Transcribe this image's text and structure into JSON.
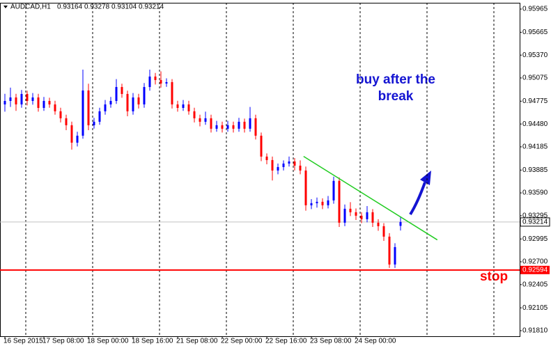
{
  "chart_data": {
    "type": "candlestick",
    "title": "AUDCAD,H1",
    "up_color": "#0000ff",
    "down_color": "#ff0000",
    "open": [
      0.94733,
      0.94778,
      0.94823,
      0.94733,
      0.94868,
      0.94778,
      0.94823,
      0.94688,
      0.94778,
      0.94733,
      0.94644,
      0.94554,
      0.94464,
      0.94239,
      0.94329,
      0.94913,
      0.94464,
      0.94509,
      0.94644,
      0.94733,
      0.94778,
      0.94958,
      0.94868,
      0.94644,
      0.94823,
      0.94733,
      0.94958,
      0.95093,
      0.95048,
      0.95003,
      0.95021,
      0.94733,
      0.94688,
      0.94733,
      0.94644,
      0.94554,
      0.94509,
      0.94554,
      0.94419,
      0.94464,
      0.94419,
      0.94464,
      0.94419,
      0.94509,
      0.94419,
      0.94554,
      0.94329,
      0.94059,
      0.94014,
      0.93879,
      0.93924,
      0.93969,
      0.93996,
      0.93942,
      0.93879,
      0.9343,
      0.93457,
      0.93475,
      0.9343,
      0.93493,
      0.93745,
      0.93205,
      0.93385,
      0.9334,
      0.93295,
      0.9325,
      0.9334,
      0.93205,
      0.9316,
      0.93025,
      0.92665,
      0.93164
    ],
    "high": [
      0.9487,
      0.9495,
      0.9487,
      0.9492,
      0.9491,
      0.9488,
      0.9487,
      0.9483,
      0.9482,
      0.9478,
      0.9469,
      0.946,
      0.9451,
      0.9438,
      0.95183,
      0.95,
      0.9456,
      0.9469,
      0.9479,
      0.9483,
      0.9506,
      0.95,
      0.9491,
      0.9488,
      0.9487,
      0.9501,
      0.95183,
      0.9514,
      0.9516,
      0.9507,
      0.9506,
      0.9478,
      0.9479,
      0.9478,
      0.9469,
      0.946,
      0.9464,
      0.946,
      0.9452,
      0.9451,
      0.9452,
      0.9451,
      0.9456,
      0.9455,
      0.947,
      0.946,
      0.9437,
      0.941,
      0.9406,
      0.9397,
      0.9401,
      0.9406,
      0.9404,
      0.9401,
      0.9393,
      0.9351,
      0.9353,
      0.9352,
      0.9355,
      0.938,
      0.9379,
      0.9344,
      0.9347,
      0.9339,
      0.9334,
      0.9342,
      0.9338,
      0.9325,
      0.932,
      0.9307,
      0.9294,
      0.93278
    ],
    "low": [
      0.9464,
      0.947,
      0.9465,
      0.9469,
      0.9472,
      0.9473,
      0.9464,
      0.9465,
      0.9469,
      0.946,
      0.945,
      0.944,
      0.9415,
      0.9419,
      0.9429,
      0.944,
      0.9442,
      0.9447,
      0.946,
      0.9469,
      0.9474,
      0.9482,
      0.9458,
      0.946,
      0.9468,
      0.9469,
      0.9491,
      0.9499,
      0.9495,
      0.9496,
      0.9468,
      0.9464,
      0.9465,
      0.946,
      0.945,
      0.9445,
      0.9447,
      0.9437,
      0.9438,
      0.9437,
      0.9438,
      0.9437,
      0.9438,
      0.9437,
      0.9438,
      0.9428,
      0.94,
      0.9396,
      0.9375,
      0.9383,
      0.9388,
      0.9393,
      0.9388,
      0.9383,
      0.9336,
      0.9338,
      0.934,
      0.9338,
      0.9339,
      0.9345,
      0.9315,
      0.9316,
      0.9329,
      0.9324,
      0.932,
      0.9321,
      0.9315,
      0.931,
      0.9297,
      0.9262,
      0.9262,
      0.93104
    ],
    "close": [
      0.94778,
      0.94823,
      0.94733,
      0.94868,
      0.94778,
      0.94823,
      0.94688,
      0.94778,
      0.94733,
      0.94644,
      0.94554,
      0.94464,
      0.94239,
      0.94329,
      0.94913,
      0.94464,
      0.94509,
      0.94644,
      0.94733,
      0.94778,
      0.94958,
      0.94868,
      0.94644,
      0.94823,
      0.94733,
      0.94958,
      0.95093,
      0.95048,
      0.95003,
      0.95021,
      0.94733,
      0.94688,
      0.94733,
      0.94644,
      0.94554,
      0.94509,
      0.94554,
      0.94419,
      0.94464,
      0.94419,
      0.94464,
      0.94419,
      0.94509,
      0.94419,
      0.94554,
      0.94329,
      0.94059,
      0.94014,
      0.93879,
      0.93924,
      0.93969,
      0.93996,
      0.93942,
      0.93879,
      0.9343,
      0.93457,
      0.93475,
      0.9343,
      0.93493,
      0.93745,
      0.93205,
      0.93385,
      0.9334,
      0.93295,
      0.9325,
      0.9334,
      0.93205,
      0.9316,
      0.93025,
      0.92665,
      0.9289,
      0.93214
    ],
    "xlim": [
      -0.875,
      92.375
    ],
    "ylim": [
      0.91738,
      0.96046
    ],
    "yticks": [
      0.95965,
      0.95665,
      {
        "value": 0.9537,
        "label": "0.95370"
      },
      0.95075,
      0.94775,
      {
        "value": 0.9448,
        "label": "0.94480"
      },
      0.94185,
      0.93885,
      {
        "value": 0.9359,
        "label": "0.93590"
      },
      0.93295,
      0.92995,
      {
        "value": 0.927,
        "label": "0.92700"
      },
      0.92405,
      0.92105,
      {
        "value": 0.9181,
        "label": "0.91810"
      }
    ],
    "xticks": [
      {
        "value": 0,
        "label": "16 Sep 2015"
      },
      {
        "value": 7,
        "label": "17 Sep 08:00"
      },
      {
        "value": 15,
        "label": "18 Sep 00:00"
      },
      {
        "value": 23,
        "label": "18 Sep 16:00"
      },
      {
        "value": 31,
        "label": "21 Sep 08:00"
      },
      {
        "value": 39,
        "label": "22 Sep 00:00"
      },
      {
        "value": 47,
        "label": "22 Sep 16:00"
      },
      {
        "value": 55,
        "label": "23 Sep 08:00"
      },
      {
        "value": 63,
        "label": "24 Sep 00:00"
      }
    ],
    "stop_level": 0.92594,
    "stop_color": "#ff0000",
    "trendline": {
      "x": [
        53.6,
        77.6
      ],
      "y": [
        0.94062,
        0.92983
      ],
      "color": "#22cc22"
    },
    "annotations": [
      "buy after the",
      "break",
      "stop"
    ]
  }
}
